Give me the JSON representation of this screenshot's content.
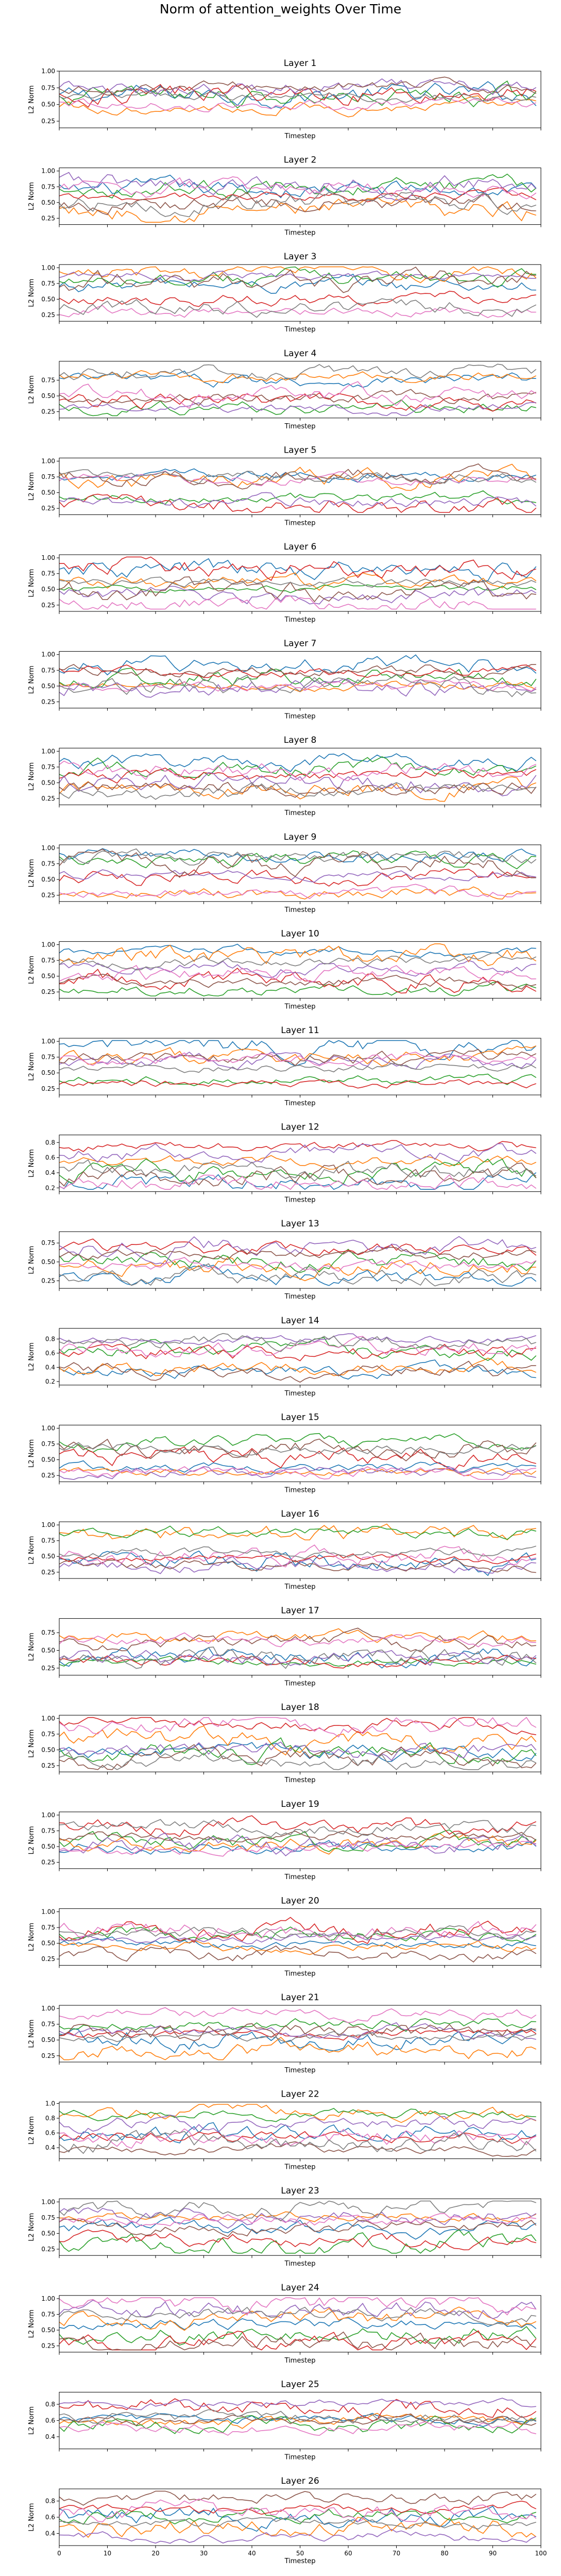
{
  "figure": {
    "title": "Norm of attention_weights Over Time"
  },
  "style": {
    "colors": [
      "#1f77b4",
      "#ff7f0e",
      "#2ca02c",
      "#d62728",
      "#9467bd",
      "#8c564b",
      "#e377c2",
      "#7f7f7f"
    ]
  },
  "chart_data": [
    {
      "type": "line",
      "title": "Layer 1",
      "xlabel": "Timestep",
      "ylabel": "L2 Norm",
      "xlim": [
        0,
        100
      ],
      "ylim": [
        0.15,
        1.0
      ],
      "yticks": [
        0.25,
        0.5,
        0.75,
        1.0
      ],
      "yticklabels": [
        "0.25",
        "0.50",
        "0.75",
        "1.00"
      ],
      "xtick_labels_visible": false,
      "series_count": 8,
      "x": [
        0,
        99
      ],
      "series": []
    },
    {
      "type": "line",
      "title": "Layer 2",
      "xlabel": "Timestep",
      "ylabel": "L2 Norm",
      "xlim": [
        0,
        100
      ],
      "ylim": [
        0.15,
        1.05
      ],
      "yticks": [
        0.25,
        0.5,
        0.75,
        1.0
      ],
      "yticklabels": [
        "0.25",
        "0.50",
        "0.75",
        "1.00"
      ],
      "xtick_labels_visible": false,
      "series_count": 8,
      "x": [
        0,
        99
      ],
      "series": []
    },
    {
      "type": "line",
      "title": "Layer 3",
      "xlabel": "Timestep",
      "ylabel": "L2 Norm",
      "xlim": [
        0,
        100
      ],
      "ylim": [
        0.15,
        1.05
      ],
      "yticks": [
        0.25,
        0.5,
        0.75,
        1.0
      ],
      "yticklabels": [
        "0.25",
        "0.50",
        "0.75",
        "1.00"
      ],
      "xtick_labels_visible": false,
      "series_count": 8,
      "x": [
        0,
        99
      ],
      "series": []
    },
    {
      "type": "line",
      "title": "Layer 4",
      "xlabel": "Timestep",
      "ylabel": "L2 Norm",
      "xlim": [
        0,
        100
      ],
      "ylim": [
        0.15,
        1.05
      ],
      "yticks": [
        0.25,
        0.5,
        0.75
      ],
      "yticklabels": [
        "0.25",
        "0.50",
        "0.75"
      ],
      "xtick_labels_visible": false,
      "series_count": 8,
      "x": [
        0,
        99
      ],
      "series": []
    },
    {
      "type": "line",
      "title": "Layer 5",
      "xlabel": "Timestep",
      "ylabel": "L2 Norm",
      "xlim": [
        0,
        100
      ],
      "ylim": [
        0.15,
        1.05
      ],
      "yticks": [
        0.25,
        0.5,
        0.75,
        1.0
      ],
      "yticklabels": [
        "0.25",
        "0.50",
        "0.75",
        "1.00"
      ],
      "xtick_labels_visible": false,
      "series_count": 8,
      "x": [
        0,
        99
      ],
      "series": []
    },
    {
      "type": "line",
      "title": "Layer 6",
      "xlabel": "Timestep",
      "ylabel": "L2 Norm",
      "xlim": [
        0,
        100
      ],
      "ylim": [
        0.15,
        1.05
      ],
      "yticks": [
        0.25,
        0.5,
        0.75,
        1.0
      ],
      "yticklabels": [
        "0.25",
        "0.50",
        "0.75",
        "1.00"
      ],
      "xtick_labels_visible": false,
      "series_count": 8,
      "x": [
        0,
        99
      ],
      "series": []
    },
    {
      "type": "line",
      "title": "Layer 7",
      "xlabel": "Timestep",
      "ylabel": "L2 Norm",
      "xlim": [
        0,
        100
      ],
      "ylim": [
        0.15,
        1.05
      ],
      "yticks": [
        0.25,
        0.5,
        0.75,
        1.0
      ],
      "yticklabels": [
        "0.25",
        "0.50",
        "0.75",
        "1.00"
      ],
      "xtick_labels_visible": false,
      "series_count": 8,
      "x": [
        0,
        99
      ],
      "series": []
    },
    {
      "type": "line",
      "title": "Layer 8",
      "xlabel": "Timestep",
      "ylabel": "L2 Norm",
      "xlim": [
        0,
        100
      ],
      "ylim": [
        0.15,
        1.05
      ],
      "yticks": [
        0.25,
        0.5,
        0.75,
        1.0
      ],
      "yticklabels": [
        "0.25",
        "0.50",
        "0.75",
        "1.00"
      ],
      "xtick_labels_visible": false,
      "series_count": 8,
      "x": [
        0,
        99
      ],
      "series": []
    },
    {
      "type": "line",
      "title": "Layer 9",
      "xlabel": "Timestep",
      "ylabel": "L2 Norm",
      "xlim": [
        0,
        100
      ],
      "ylim": [
        0.15,
        1.05
      ],
      "yticks": [
        0.25,
        0.5,
        0.75,
        1.0
      ],
      "yticklabels": [
        "0.25",
        "0.50",
        "0.75",
        "1.00"
      ],
      "xtick_labels_visible": false,
      "series_count": 8,
      "x": [
        0,
        99
      ],
      "series": []
    },
    {
      "type": "line",
      "title": "Layer 10",
      "xlabel": "Timestep",
      "ylabel": "L2 Norm",
      "xlim": [
        0,
        100
      ],
      "ylim": [
        0.15,
        1.05
      ],
      "yticks": [
        0.25,
        0.5,
        0.75,
        1.0
      ],
      "yticklabels": [
        "0.25",
        "0.50",
        "0.75",
        "1.00"
      ],
      "xtick_labels_visible": false,
      "series_count": 8,
      "x": [
        0,
        99
      ],
      "series": []
    },
    {
      "type": "line",
      "title": "Layer 11",
      "xlabel": "Timestep",
      "ylabel": "L2 Norm",
      "xlim": [
        0,
        100
      ],
      "ylim": [
        0.15,
        1.05
      ],
      "yticks": [
        0.25,
        0.5,
        0.75,
        1.0
      ],
      "yticklabels": [
        "0.25",
        "0.50",
        "0.75",
        "1.00"
      ],
      "xtick_labels_visible": false,
      "series_count": 8,
      "x": [
        0,
        99
      ],
      "series": []
    },
    {
      "type": "line",
      "title": "Layer 12",
      "xlabel": "Timestep",
      "ylabel": "L2 Norm",
      "xlim": [
        0,
        100
      ],
      "ylim": [
        0.15,
        0.9
      ],
      "yticks": [
        0.2,
        0.4,
        0.6,
        0.8
      ],
      "yticklabels": [
        "0.2",
        "0.4",
        "0.6",
        "0.8"
      ],
      "xtick_labels_visible": false,
      "series_count": 8,
      "x": [
        0,
        99
      ],
      "series": []
    },
    {
      "type": "line",
      "title": "Layer 13",
      "xlabel": "Timestep",
      "ylabel": "L2 Norm",
      "xlim": [
        0,
        100
      ],
      "ylim": [
        0.15,
        0.9
      ],
      "yticks": [
        0.25,
        0.5,
        0.75
      ],
      "yticklabels": [
        "0.25",
        "0.50",
        "0.75"
      ],
      "xtick_labels_visible": false,
      "series_count": 8,
      "x": [
        0,
        99
      ],
      "series": []
    },
    {
      "type": "line",
      "title": "Layer 14",
      "xlabel": "Timestep",
      "ylabel": "L2 Norm",
      "xlim": [
        0,
        100
      ],
      "ylim": [
        0.15,
        0.95
      ],
      "yticks": [
        0.2,
        0.4,
        0.6,
        0.8
      ],
      "yticklabels": [
        "0.2",
        "0.4",
        "0.6",
        "0.8"
      ],
      "xtick_labels_visible": false,
      "series_count": 8,
      "x": [
        0,
        99
      ],
      "series": []
    },
    {
      "type": "line",
      "title": "Layer 15",
      "xlabel": "Timestep",
      "ylabel": "L2 Norm",
      "xlim": [
        0,
        100
      ],
      "ylim": [
        0.15,
        1.05
      ],
      "yticks": [
        0.25,
        0.5,
        0.75,
        1.0
      ],
      "yticklabels": [
        "0.25",
        "0.50",
        "0.75",
        "1.00"
      ],
      "xtick_labels_visible": false,
      "series_count": 8,
      "x": [
        0,
        99
      ],
      "series": []
    },
    {
      "type": "line",
      "title": "Layer 16",
      "xlabel": "Timestep",
      "ylabel": "L2 Norm",
      "xlim": [
        0,
        100
      ],
      "ylim": [
        0.15,
        1.05
      ],
      "yticks": [
        0.25,
        0.5,
        0.75,
        1.0
      ],
      "yticklabels": [
        "0.25",
        "0.50",
        "0.75",
        "1.00"
      ],
      "xtick_labels_visible": false,
      "series_count": 8,
      "x": [
        0,
        99
      ],
      "series": []
    },
    {
      "type": "line",
      "title": "Layer 17",
      "xlabel": "Timestep",
      "ylabel": "L2 Norm",
      "xlim": [
        0,
        100
      ],
      "ylim": [
        0.15,
        0.95
      ],
      "yticks": [
        0.25,
        0.5,
        0.75
      ],
      "yticklabels": [
        "0.25",
        "0.50",
        "0.75"
      ],
      "xtick_labels_visible": false,
      "series_count": 8,
      "x": [
        0,
        99
      ],
      "series": []
    },
    {
      "type": "line",
      "title": "Layer 18",
      "xlabel": "Timestep",
      "ylabel": "L2 Norm",
      "xlim": [
        0,
        100
      ],
      "ylim": [
        0.15,
        1.05
      ],
      "yticks": [
        0.25,
        0.5,
        0.75,
        1.0
      ],
      "yticklabels": [
        "0.25",
        "0.50",
        "0.75",
        "1.00"
      ],
      "xtick_labels_visible": false,
      "series_count": 8,
      "x": [
        0,
        99
      ],
      "series": []
    },
    {
      "type": "line",
      "title": "Layer 19",
      "xlabel": "Timestep",
      "ylabel": "L2 Norm",
      "xlim": [
        0,
        100
      ],
      "ylim": [
        0.15,
        1.05
      ],
      "yticks": [
        0.25,
        0.5,
        0.75,
        1.0
      ],
      "yticklabels": [
        "0.25",
        "0.50",
        "0.75",
        "1.00"
      ],
      "xtick_labels_visible": false,
      "series_count": 8,
      "x": [
        0,
        99
      ],
      "series": []
    },
    {
      "type": "line",
      "title": "Layer 20",
      "xlabel": "Timestep",
      "ylabel": "L2 Norm",
      "xlim": [
        0,
        100
      ],
      "ylim": [
        0.15,
        1.05
      ],
      "yticks": [
        0.25,
        0.5,
        0.75,
        1.0
      ],
      "yticklabels": [
        "0.25",
        "0.50",
        "0.75",
        "1.00"
      ],
      "xtick_labels_visible": false,
      "series_count": 8,
      "x": [
        0,
        99
      ],
      "series": []
    },
    {
      "type": "line",
      "title": "Layer 21",
      "xlabel": "Timestep",
      "ylabel": "L2 Norm",
      "xlim": [
        0,
        100
      ],
      "ylim": [
        0.15,
        1.05
      ],
      "yticks": [
        0.25,
        0.5,
        0.75,
        1.0
      ],
      "yticklabels": [
        "0.25",
        "0.50",
        "0.75",
        "1.00"
      ],
      "xtick_labels_visible": false,
      "series_count": 8,
      "x": [
        0,
        99
      ],
      "series": []
    },
    {
      "type": "line",
      "title": "Layer 22",
      "xlabel": "Timestep",
      "ylabel": "L2 Norm",
      "xlim": [
        0,
        100
      ],
      "ylim": [
        0.25,
        1.02
      ],
      "yticks": [
        0.4,
        0.6,
        0.8,
        1.0
      ],
      "yticklabels": [
        "0.4",
        "0.6",
        "0.8",
        "1.0"
      ],
      "xtick_labels_visible": false,
      "series_count": 8,
      "x": [
        0,
        99
      ],
      "series": []
    },
    {
      "type": "line",
      "title": "Layer 23",
      "xlabel": "Timestep",
      "ylabel": "L2 Norm",
      "xlim": [
        0,
        100
      ],
      "ylim": [
        0.15,
        1.05
      ],
      "yticks": [
        0.25,
        0.5,
        0.75,
        1.0
      ],
      "yticklabels": [
        "0.25",
        "0.50",
        "0.75",
        "1.00"
      ],
      "xtick_labels_visible": false,
      "series_count": 8,
      "x": [
        0,
        99
      ],
      "series": []
    },
    {
      "type": "line",
      "title": "Layer 24",
      "xlabel": "Timestep",
      "ylabel": "L2 Norm",
      "xlim": [
        0,
        100
      ],
      "ylim": [
        0.15,
        1.05
      ],
      "yticks": [
        0.25,
        0.5,
        0.75,
        1.0
      ],
      "yticklabels": [
        "0.25",
        "0.50",
        "0.75",
        "1.00"
      ],
      "xtick_labels_visible": false,
      "series_count": 8,
      "x": [
        0,
        99
      ],
      "series": []
    },
    {
      "type": "line",
      "title": "Layer 25",
      "xlabel": "Timestep",
      "ylabel": "L2 Norm",
      "xlim": [
        0,
        100
      ],
      "ylim": [
        0.25,
        0.95
      ],
      "yticks": [
        0.4,
        0.6,
        0.8
      ],
      "yticklabels": [
        "0.4",
        "0.6",
        "0.8"
      ],
      "xtick_labels_visible": false,
      "series_count": 8,
      "x": [
        0,
        99
      ],
      "series": []
    },
    {
      "type": "line",
      "title": "Layer 26",
      "xlabel": "Timestep",
      "ylabel": "L2 Norm",
      "xlim": [
        0,
        100
      ],
      "ylim": [
        0.25,
        0.95
      ],
      "yticks": [
        0.4,
        0.6,
        0.8
      ],
      "yticklabels": [
        "0.4",
        "0.6",
        "0.8"
      ],
      "xticks": [
        0,
        10,
        20,
        30,
        40,
        50,
        60,
        70,
        80,
        90,
        100
      ],
      "xtick_labels_visible": true,
      "series_count": 8,
      "x": [
        0,
        99
      ],
      "series": []
    }
  ]
}
